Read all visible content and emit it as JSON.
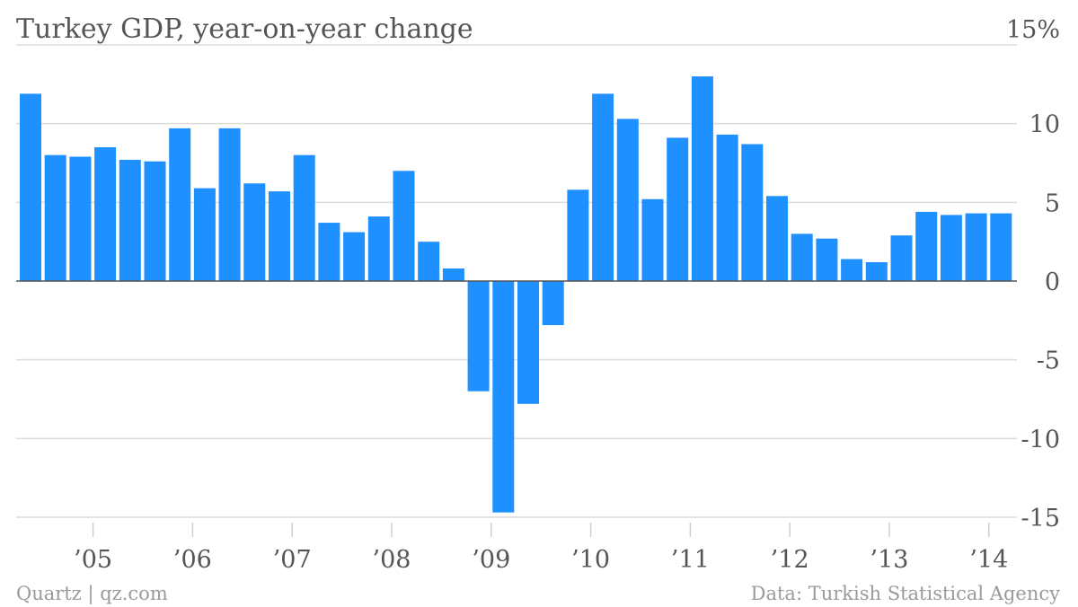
{
  "colors": {
    "bar": "#1e90ff",
    "text": "#555555",
    "grid": "#dcdcdc",
    "footer": "#9a9a9a"
  },
  "chart_data": {
    "type": "bar",
    "title": "Turkey GDP, year-on-year change",
    "xlabel": "",
    "ylabel": "",
    "ylim": [
      -15,
      15
    ],
    "y_ticks": [
      {
        "value": 15,
        "label": "15%"
      },
      {
        "value": 10,
        "label": "10"
      },
      {
        "value": 5,
        "label": "5"
      },
      {
        "value": 0,
        "label": "0"
      },
      {
        "value": -5,
        "label": "-5"
      },
      {
        "value": -10,
        "label": "-10"
      },
      {
        "value": -15,
        "label": "-15"
      }
    ],
    "x_ticks": [
      {
        "quarter_index": 3,
        "label": "’05"
      },
      {
        "quarter_index": 7,
        "label": "’06"
      },
      {
        "quarter_index": 11,
        "label": "’07"
      },
      {
        "quarter_index": 15,
        "label": "’08"
      },
      {
        "quarter_index": 19,
        "label": "’09"
      },
      {
        "quarter_index": 23,
        "label": "’10"
      },
      {
        "quarter_index": 27,
        "label": "’11"
      },
      {
        "quarter_index": 31,
        "label": "’12"
      },
      {
        "quarter_index": 35,
        "label": "’13"
      },
      {
        "quarter_index": 39,
        "label": "’14"
      }
    ],
    "grid": true,
    "y_axis_position": "right",
    "values": [
      11.9,
      8.0,
      7.9,
      8.5,
      7.7,
      7.6,
      9.7,
      5.9,
      9.7,
      6.2,
      5.7,
      8.0,
      3.7,
      3.1,
      4.1,
      7.0,
      2.5,
      0.8,
      -7.0,
      -14.7,
      -7.8,
      -2.8,
      5.8,
      11.9,
      10.3,
      5.2,
      9.1,
      13.0,
      9.3,
      8.7,
      5.4,
      3.0,
      2.7,
      1.4,
      1.2,
      2.9,
      4.4,
      4.2,
      4.3,
      4.3
    ]
  },
  "footer": {
    "source_left": "Quartz | qz.com",
    "source_right": "Data: Turkish Statistical Agency"
  }
}
